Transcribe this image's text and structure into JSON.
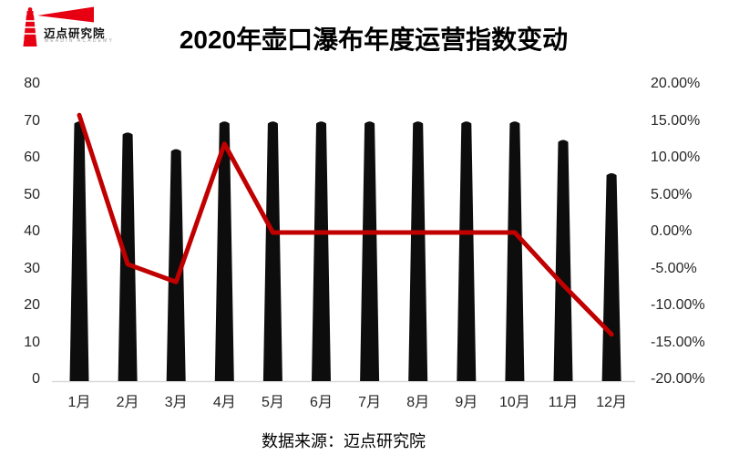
{
  "logo": {
    "brand": "迈点研究院",
    "subtitle": "MEADIN ACADEMY",
    "color": "#e60012"
  },
  "title": "2020年壶口瀑布年度运营指数变动",
  "source_caption": "数据来源：迈点研究院",
  "chart_data": {
    "type": "combo: bar + line",
    "title": "2020年壶口瀑布年度运营指数变动",
    "categories": [
      "1月",
      "2月",
      "3月",
      "4月",
      "5月",
      "6月",
      "7月",
      "8月",
      "9月",
      "10月",
      "11月",
      "12月"
    ],
    "series": [
      {
        "name": "bar_series",
        "type": "bar",
        "axis": "left",
        "color": "#0d0d0d",
        "values": [
          70,
          67,
          62.5,
          70,
          70,
          70,
          70,
          70,
          70,
          70,
          65,
          56
        ]
      },
      {
        "name": "line_series",
        "type": "line",
        "axis": "right",
        "unit": "%",
        "color": "#c00000",
        "values": [
          15.9,
          -4.3,
          -6.7,
          12.0,
          0,
          0,
          0,
          0,
          0,
          0,
          -7.1,
          -13.8
        ]
      }
    ],
    "left_axis": {
      "range": [
        0,
        80
      ],
      "tick_values": [
        80,
        70,
        60,
        50,
        40,
        30,
        20,
        10,
        0
      ],
      "tick_labels": [
        "80",
        "70",
        "60",
        "50",
        "40",
        "30",
        "20",
        "10",
        "0"
      ]
    },
    "right_axis": {
      "range": [
        -20,
        20
      ],
      "tick_values": [
        20,
        15,
        10,
        5,
        0,
        -5,
        -10,
        -15,
        -20
      ],
      "tick_labels": [
        "20.00%",
        "15.00%",
        "10.00%",
        "5.00%",
        "0.00%",
        "-5.00%",
        "-10.00%",
        "-15.00%",
        "-20.00%"
      ]
    },
    "grid": false,
    "legend": false,
    "axis_line_color": "#d9d9d9",
    "background": "#ffffff"
  }
}
